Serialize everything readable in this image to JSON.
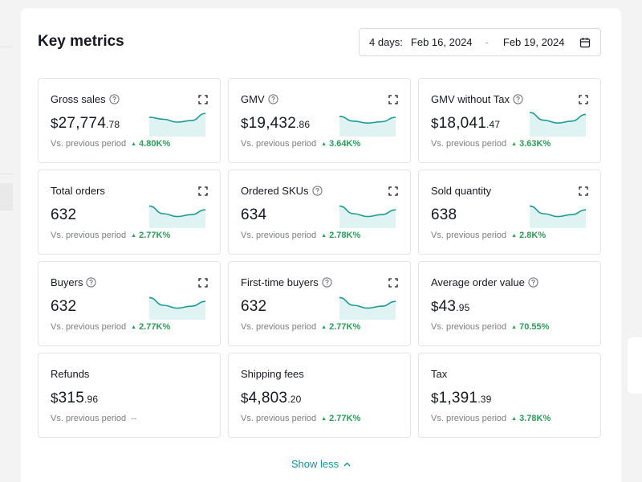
{
  "panel": {
    "title": "Key metrics",
    "date_range": {
      "label": "4 days:",
      "start": "Feb 16, 2024",
      "separator": "-",
      "end": "Feb 19, 2024"
    },
    "compare_label": "Vs. previous period",
    "show_less_label": "Show less"
  },
  "colors": {
    "accent": "#12939f",
    "positive": "#2e9b5a",
    "sparkline": "#1d9a93",
    "sparkline_fill": "#dff3f2"
  },
  "metrics": [
    {
      "name": "Gross sales",
      "help": true,
      "expand": true,
      "currency": "$",
      "int": "27,774",
      "dec": ".78",
      "change": "4.80K%",
      "spark": [
        0.25,
        0.35,
        0.5,
        0.42,
        0.05
      ]
    },
    {
      "name": "GMV",
      "help": true,
      "expand": true,
      "currency": "$",
      "int": "19,432",
      "dec": ".86",
      "change": "3.64K%",
      "spark": [
        0.2,
        0.45,
        0.55,
        0.48,
        0.25
      ]
    },
    {
      "name": "GMV without Tax",
      "help": true,
      "expand": true,
      "currency": "$",
      "int": "18,041",
      "dec": ".47",
      "change": "3.63K%",
      "spark": [
        0.0,
        0.4,
        0.55,
        0.45,
        0.1
      ]
    },
    {
      "name": "Total orders",
      "help": false,
      "expand": true,
      "currency": "",
      "int": "632",
      "dec": "",
      "change": "2.77K%",
      "spark": [
        0.1,
        0.5,
        0.65,
        0.55,
        0.3
      ]
    },
    {
      "name": "Ordered SKUs",
      "help": true,
      "expand": true,
      "currency": "",
      "int": "634",
      "dec": "",
      "change": "2.78K%",
      "spark": [
        0.1,
        0.5,
        0.65,
        0.55,
        0.3
      ]
    },
    {
      "name": "Sold quantity",
      "help": false,
      "expand": true,
      "currency": "",
      "int": "638",
      "dec": "",
      "change": "2.8K%",
      "spark": [
        0.1,
        0.5,
        0.65,
        0.55,
        0.3
      ]
    },
    {
      "name": "Buyers",
      "help": true,
      "expand": true,
      "currency": "",
      "int": "632",
      "dec": "",
      "change": "2.77K%",
      "spark": [
        0.1,
        0.5,
        0.65,
        0.55,
        0.3
      ]
    },
    {
      "name": "First-time buyers",
      "help": true,
      "expand": true,
      "currency": "",
      "int": "632",
      "dec": "",
      "change": "2.77K%",
      "spark": [
        0.1,
        0.5,
        0.65,
        0.55,
        0.3
      ]
    },
    {
      "name": "Average order value",
      "help": true,
      "expand": false,
      "currency": "$",
      "int": "43",
      "dec": ".95",
      "change": "70.55%",
      "spark": null
    },
    {
      "name": "Refunds",
      "help": false,
      "expand": false,
      "currency": "$",
      "int": "315",
      "dec": ".96",
      "change": null,
      "no_change": "--",
      "spark": null
    },
    {
      "name": "Shipping fees",
      "help": false,
      "expand": false,
      "currency": "$",
      "int": "4,803",
      "dec": ".20",
      "change": "2.77K%",
      "spark": null
    },
    {
      "name": "Tax",
      "help": false,
      "expand": false,
      "currency": "$",
      "int": "1,391",
      "dec": ".39",
      "change": "3.78K%",
      "spark": null
    }
  ]
}
